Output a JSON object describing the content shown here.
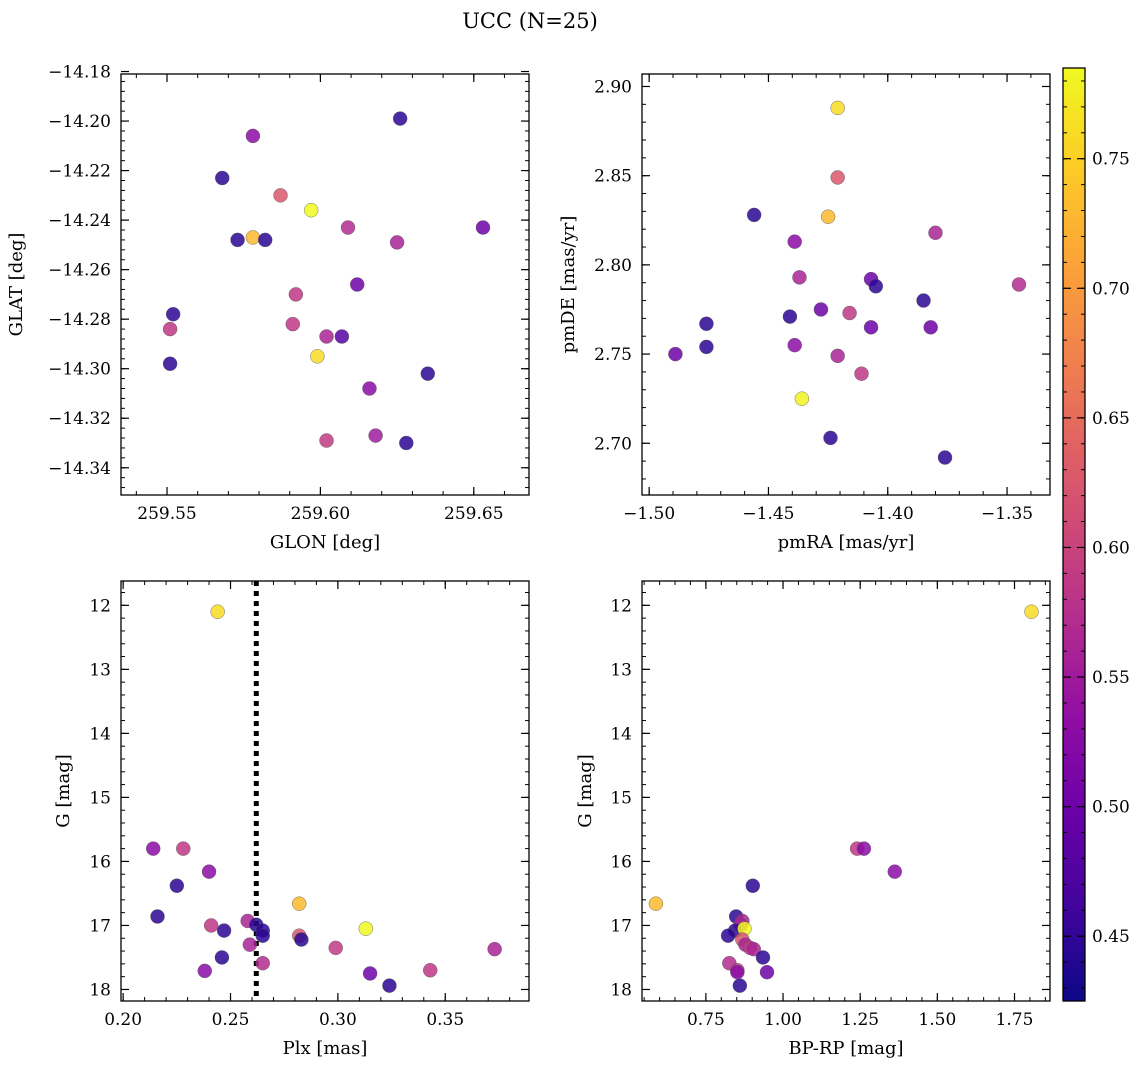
{
  "figure": {
    "title": "UCC (N=25)"
  },
  "colorbar": {
    "colormap": "plasma",
    "range": [
      0.425,
      0.785
    ],
    "ticks": [
      0.45,
      0.5,
      0.55,
      0.6,
      0.65,
      0.7,
      0.75
    ],
    "tick_labels": [
      "0.45",
      "0.50",
      "0.55",
      "0.60",
      "0.65",
      "0.70",
      "0.75"
    ]
  },
  "chart_data": [
    {
      "type": "scatter",
      "id": "glon-glat",
      "xlabel": "GLON [deg]",
      "ylabel": "GLAT [deg]",
      "xlim": [
        259.535,
        259.668
      ],
      "ylim": [
        -14.351,
        -14.181
      ],
      "xticks": [
        259.55,
        259.6,
        259.65
      ],
      "xtick_labels": [
        "259.55",
        "259.60",
        "259.65"
      ],
      "yticks": [
        -14.18,
        -14.2,
        -14.22,
        -14.24,
        -14.26,
        -14.28,
        -14.3,
        -14.32,
        -14.34
      ],
      "ytick_labels": [
        "−14.18",
        "−14.20",
        "−14.22",
        "−14.24",
        "−14.26",
        "−14.28",
        "−14.30",
        "−14.32",
        "−14.34"
      ],
      "points": [
        {
          "x": 259.552,
          "y": -14.278,
          "c": 0.445
        },
        {
          "x": 259.551,
          "y": -14.284,
          "c": 0.585
        },
        {
          "x": 259.551,
          "y": -14.298,
          "c": 0.445
        },
        {
          "x": 259.568,
          "y": -14.223,
          "c": 0.445
        },
        {
          "x": 259.573,
          "y": -14.248,
          "c": 0.445
        },
        {
          "x": 259.578,
          "y": -14.247,
          "c": 0.73
        },
        {
          "x": 259.578,
          "y": -14.206,
          "c": 0.53
        },
        {
          "x": 259.582,
          "y": -14.248,
          "c": 0.445
        },
        {
          "x": 259.587,
          "y": -14.23,
          "c": 0.625
        },
        {
          "x": 259.597,
          "y": -14.236,
          "c": 0.785
        },
        {
          "x": 259.592,
          "y": -14.27,
          "c": 0.585
        },
        {
          "x": 259.591,
          "y": -14.282,
          "c": 0.585
        },
        {
          "x": 259.599,
          "y": -14.295,
          "c": 0.76
        },
        {
          "x": 259.602,
          "y": -14.287,
          "c": 0.56
        },
        {
          "x": 259.602,
          "y": -14.329,
          "c": 0.59
        },
        {
          "x": 259.607,
          "y": -14.287,
          "c": 0.48
        },
        {
          "x": 259.609,
          "y": -14.243,
          "c": 0.57
        },
        {
          "x": 259.612,
          "y": -14.266,
          "c": 0.5
        },
        {
          "x": 259.616,
          "y": -14.308,
          "c": 0.53
        },
        {
          "x": 259.618,
          "y": -14.327,
          "c": 0.55
        },
        {
          "x": 259.625,
          "y": -14.249,
          "c": 0.56
        },
        {
          "x": 259.626,
          "y": -14.199,
          "c": 0.445
        },
        {
          "x": 259.628,
          "y": -14.33,
          "c": 0.445
        },
        {
          "x": 259.635,
          "y": -14.302,
          "c": 0.445
        },
        {
          "x": 259.653,
          "y": -14.243,
          "c": 0.5
        }
      ]
    },
    {
      "type": "scatter",
      "id": "pmra-pmde",
      "xlabel": "pmRA [mas/yr]",
      "ylabel": "pmDE [mas/yr]",
      "xlim": [
        -1.503,
        -1.332
      ],
      "ylim": [
        2.671,
        2.907
      ],
      "xticks": [
        -1.5,
        -1.45,
        -1.4,
        -1.35
      ],
      "xtick_labels": [
        "−1.50",
        "−1.45",
        "−1.40",
        "−1.35"
      ],
      "yticks": [
        2.7,
        2.75,
        2.8,
        2.85,
        2.9
      ],
      "ytick_labels": [
        "2.70",
        "2.75",
        "2.80",
        "2.85",
        "2.90"
      ],
      "points": [
        {
          "x": -1.489,
          "y": 2.75,
          "c": 0.5
        },
        {
          "x": -1.476,
          "y": 2.767,
          "c": 0.445
        },
        {
          "x": -1.476,
          "y": 2.754,
          "c": 0.445
        },
        {
          "x": -1.456,
          "y": 2.828,
          "c": 0.445
        },
        {
          "x": -1.441,
          "y": 2.771,
          "c": 0.445
        },
        {
          "x": -1.439,
          "y": 2.813,
          "c": 0.53
        },
        {
          "x": -1.439,
          "y": 2.755,
          "c": 0.53
        },
        {
          "x": -1.437,
          "y": 2.793,
          "c": 0.56
        },
        {
          "x": -1.436,
          "y": 2.725,
          "c": 0.78
        },
        {
          "x": -1.428,
          "y": 2.775,
          "c": 0.5
        },
        {
          "x": -1.425,
          "y": 2.827,
          "c": 0.73
        },
        {
          "x": -1.424,
          "y": 2.703,
          "c": 0.445
        },
        {
          "x": -1.421,
          "y": 2.888,
          "c": 0.76
        },
        {
          "x": -1.421,
          "y": 2.849,
          "c": 0.625
        },
        {
          "x": -1.421,
          "y": 2.749,
          "c": 0.56
        },
        {
          "x": -1.416,
          "y": 2.773,
          "c": 0.585
        },
        {
          "x": -1.411,
          "y": 2.739,
          "c": 0.585
        },
        {
          "x": -1.407,
          "y": 2.792,
          "c": 0.5
        },
        {
          "x": -1.407,
          "y": 2.765,
          "c": 0.5
        },
        {
          "x": -1.405,
          "y": 2.788,
          "c": 0.445
        },
        {
          "x": -1.385,
          "y": 2.78,
          "c": 0.445
        },
        {
          "x": -1.382,
          "y": 2.765,
          "c": 0.5
        },
        {
          "x": -1.38,
          "y": 2.818,
          "c": 0.56
        },
        {
          "x": -1.376,
          "y": 2.692,
          "c": 0.445
        },
        {
          "x": -1.345,
          "y": 2.789,
          "c": 0.57
        }
      ]
    },
    {
      "type": "scatter",
      "id": "plx-g",
      "xlabel": "Plx [mas]",
      "ylabel": "G [mag]",
      "xlim": [
        0.199,
        0.389
      ],
      "ylim": [
        18.18,
        11.62
      ],
      "xticks": [
        0.2,
        0.25,
        0.3,
        0.35
      ],
      "xtick_labels": [
        "0.20",
        "0.25",
        "0.30",
        "0.35"
      ],
      "yticks": [
        12,
        13,
        14,
        15,
        16,
        17,
        18
      ],
      "ytick_labels": [
        "12",
        "13",
        "14",
        "15",
        "16",
        "17",
        "18"
      ],
      "vline": {
        "x": 0.262,
        "style": "dotted"
      },
      "points": [
        {
          "x": 0.244,
          "y": 12.1,
          "c": 0.76
        },
        {
          "x": 0.214,
          "y": 15.8,
          "c": 0.53
        },
        {
          "x": 0.228,
          "y": 15.8,
          "c": 0.585
        },
        {
          "x": 0.225,
          "y": 16.38,
          "c": 0.445
        },
        {
          "x": 0.24,
          "y": 16.16,
          "c": 0.53
        },
        {
          "x": 0.216,
          "y": 16.86,
          "c": 0.445
        },
        {
          "x": 0.241,
          "y": 17.0,
          "c": 0.585
        },
        {
          "x": 0.258,
          "y": 16.93,
          "c": 0.56
        },
        {
          "x": 0.262,
          "y": 16.99,
          "c": 0.445
        },
        {
          "x": 0.247,
          "y": 17.08,
          "c": 0.445
        },
        {
          "x": 0.265,
          "y": 17.08,
          "c": 0.445
        },
        {
          "x": 0.265,
          "y": 17.16,
          "c": 0.445
        },
        {
          "x": 0.259,
          "y": 17.3,
          "c": 0.56
        },
        {
          "x": 0.265,
          "y": 17.59,
          "c": 0.57
        },
        {
          "x": 0.246,
          "y": 17.5,
          "c": 0.445
        },
        {
          "x": 0.238,
          "y": 17.71,
          "c": 0.53
        },
        {
          "x": 0.282,
          "y": 16.66,
          "c": 0.73
        },
        {
          "x": 0.282,
          "y": 17.16,
          "c": 0.625
        },
        {
          "x": 0.283,
          "y": 17.22,
          "c": 0.445
        },
        {
          "x": 0.299,
          "y": 17.35,
          "c": 0.59
        },
        {
          "x": 0.313,
          "y": 17.05,
          "c": 0.785
        },
        {
          "x": 0.315,
          "y": 17.75,
          "c": 0.5
        },
        {
          "x": 0.324,
          "y": 17.94,
          "c": 0.445
        },
        {
          "x": 0.343,
          "y": 17.7,
          "c": 0.585
        },
        {
          "x": 0.373,
          "y": 17.37,
          "c": 0.56
        }
      ]
    },
    {
      "type": "scatter",
      "id": "bprp-g",
      "xlabel": "BP-RP [mag]",
      "ylabel": "G [mag]",
      "xlim": [
        0.543,
        1.865
      ],
      "ylim": [
        18.18,
        11.62
      ],
      "xticks": [
        0.75,
        1.0,
        1.25,
        1.5,
        1.75
      ],
      "xtick_labels": [
        "0.75",
        "1.00",
        "1.25",
        "1.50",
        "1.75"
      ],
      "yticks": [
        12,
        13,
        14,
        15,
        16,
        17,
        18
      ],
      "ytick_labels": [
        "12",
        "13",
        "14",
        "15",
        "16",
        "17",
        "18"
      ],
      "points": [
        {
          "x": 1.805,
          "y": 12.1,
          "c": 0.76
        },
        {
          "x": 1.24,
          "y": 15.8,
          "c": 0.585
        },
        {
          "x": 1.262,
          "y": 15.8,
          "c": 0.53
        },
        {
          "x": 1.362,
          "y": 16.16,
          "c": 0.53
        },
        {
          "x": 0.902,
          "y": 16.38,
          "c": 0.445
        },
        {
          "x": 0.588,
          "y": 16.66,
          "c": 0.73
        },
        {
          "x": 0.848,
          "y": 16.86,
          "c": 0.445
        },
        {
          "x": 0.868,
          "y": 16.93,
          "c": 0.56
        },
        {
          "x": 0.863,
          "y": 16.99,
          "c": 0.56
        },
        {
          "x": 0.845,
          "y": 17.08,
          "c": 0.445
        },
        {
          "x": 0.875,
          "y": 17.05,
          "c": 0.785
        },
        {
          "x": 0.822,
          "y": 17.16,
          "c": 0.445
        },
        {
          "x": 0.868,
          "y": 17.22,
          "c": 0.625
        },
        {
          "x": 0.878,
          "y": 17.3,
          "c": 0.56
        },
        {
          "x": 0.893,
          "y": 17.35,
          "c": 0.59
        },
        {
          "x": 0.905,
          "y": 17.37,
          "c": 0.56
        },
        {
          "x": 0.935,
          "y": 17.5,
          "c": 0.445
        },
        {
          "x": 0.826,
          "y": 17.59,
          "c": 0.57
        },
        {
          "x": 0.852,
          "y": 17.7,
          "c": 0.585
        },
        {
          "x": 0.852,
          "y": 17.73,
          "c": 0.53
        },
        {
          "x": 0.948,
          "y": 17.73,
          "c": 0.5
        },
        {
          "x": 0.86,
          "y": 17.94,
          "c": 0.445
        }
      ]
    }
  ]
}
